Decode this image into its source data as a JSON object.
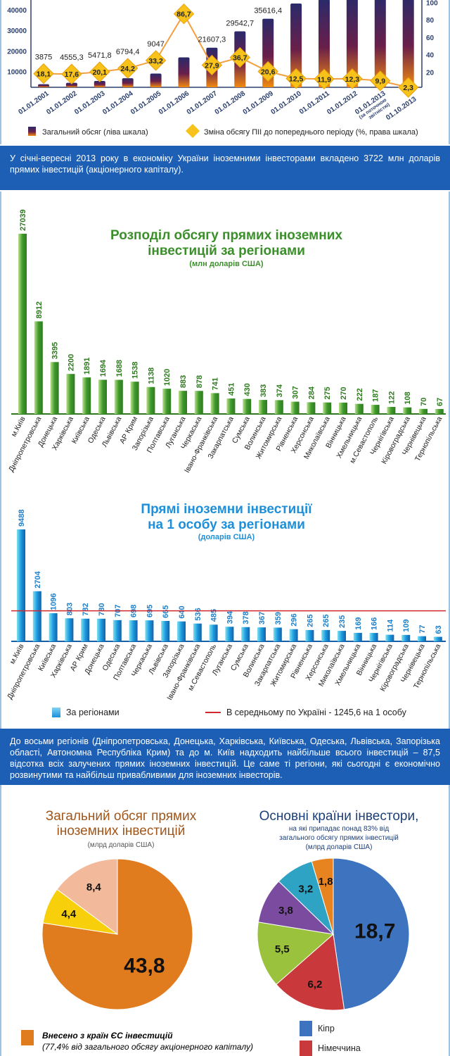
{
  "chart_data": [
    {
      "type": "bar",
      "name": "fdi-dynamics",
      "categories": [
        "01.01.2001",
        "01.01.2002",
        "01.01.2003",
        "01.01.2004",
        "01.01.2005",
        "01.01.2006",
        "01.01.2007",
        "01.01.2008",
        "01.01.2009",
        "01.01.2010",
        "01.01.2011",
        "01.01.2012",
        "01.01.2013 (за поточною звітністю)",
        "01.10.2013"
      ],
      "category_lines": [
        [
          "01.01.2001"
        ],
        [
          "01.01.2002"
        ],
        [
          "01.01.2003"
        ],
        [
          "01.01.2004"
        ],
        [
          "01.01.2005"
        ],
        [
          "01.01.2006"
        ],
        [
          "01.01.2007"
        ],
        [
          "01.01.2008"
        ],
        [
          "01.01.2009"
        ],
        [
          "01.01.2010"
        ],
        [
          "01.01.2011"
        ],
        [
          "01.01.2012"
        ],
        [
          "01.01.2013",
          "(за поточною",
          "звітністю)"
        ],
        [
          "01.10.2013"
        ]
      ],
      "series": [
        {
          "name": "Загальний обсяг (ліва шкала)",
          "type": "bar",
          "values": [
            3875,
            4555.3,
            5471.8,
            6794.4,
            9047,
            16890,
            21607.3,
            29542.7,
            35616.4,
            43000,
            45000,
            49500,
            54000,
            57000
          ],
          "labels": [
            "3875",
            "4555,3",
            "5471,8",
            "6794,4",
            "9047",
            "16890",
            "21607,3",
            "29542,7",
            "35616,4",
            "",
            "",
            "",
            "",
            ""
          ]
        },
        {
          "name": "Зміна обсягу ПІІ до попереднього періоду (%, права шкала)",
          "type": "line",
          "values": [
            18.1,
            17.6,
            20.1,
            24.2,
            33.2,
            86.7,
            27.9,
            36.7,
            20.6,
            12.5,
            11.9,
            12.3,
            9.9,
            2.3
          ],
          "labels": [
            "18,1",
            "17,6",
            "20,1",
            "24,2",
            "33,2",
            "86,7",
            "27,9",
            "36,7",
            "20,6",
            "12,5",
            "11,9",
            "12,3",
            "9,9",
            "2,3"
          ]
        }
      ],
      "left_ticks": [
        "10000",
        "20000",
        "30000",
        "40000"
      ],
      "right_ticks": [
        "20",
        "40",
        "60",
        "80",
        "100"
      ],
      "legend": [
        "Загальний обсяг (ліва шкала)",
        "Зміна обсягу ПІІ до попереднього періоду (%, права шкала)"
      ]
    },
    {
      "type": "bar",
      "name": "fdi-by-region",
      "title": "Розподіл обсягу прямих іноземних інвестицій за регіонами",
      "title_lines": [
        "Розподіл обсягу прямих іноземних",
        "інвестицій за регіонами"
      ],
      "subtitle": "(млн доларів США)",
      "categories": [
        "м.Київ",
        "Дніпропетровська",
        "Донецька",
        "Харківська",
        "Київська",
        "Одеська",
        "Львівська",
        "АР Крим",
        "Запорізька",
        "Полтавська",
        "Луганська",
        "Черкаська",
        "Івано-Франківська",
        "Закарпатська",
        "Сумська",
        "Волинська",
        "Житомирська",
        "Рівненська",
        "Херсонська",
        "Миколаївська",
        "Вінницька",
        "Хмельницька",
        "м.Севастополь",
        "Чернігівська",
        "Кіровоградська",
        "Чернівецька",
        "Тернопільська"
      ],
      "values": [
        27039,
        8912,
        3395,
        2200,
        1891,
        1694,
        1688,
        1538,
        1138,
        1020,
        883,
        878,
        741,
        451,
        430,
        383,
        374,
        307,
        284,
        275,
        270,
        222,
        187,
        122,
        108,
        70,
        67
      ]
    },
    {
      "type": "bar",
      "name": "fdi-per-capita",
      "title": "Прямі іноземни інвестиції на 1 особу за регіонами",
      "title_lines": [
        "Прямі іноземни інвестиції",
        "на 1 особу за регіонами"
      ],
      "subtitle": "(доларів США)",
      "categories": [
        "м.Київ",
        "Дніпропетровська",
        "Київська",
        "Харківська",
        "АР Крим",
        "Донецька",
        "Одеська",
        "Полтавська",
        "Черкаська",
        "Львівська",
        "Запорізька",
        "Івано-Франківська",
        "м.Севастополь",
        "Луганська",
        "Сумська",
        "Волинська",
        "Закарпатська",
        "Житомирська",
        "Рівненська",
        "Херсонська",
        "Миколаївська",
        "Хмельницька",
        "Вінницька",
        "Чернігівська",
        "Кіровоградська",
        "Чернівецька",
        "Тернопільська"
      ],
      "values": [
        9488,
        2704,
        1096,
        803,
        782,
        780,
        707,
        698,
        695,
        665,
        640,
        536,
        485,
        394,
        378,
        367,
        359,
        296,
        265,
        265,
        235,
        169,
        166,
        114,
        109,
        77,
        63
      ],
      "average": 1245.6,
      "legend": [
        "За регіонами",
        "В середньому по Україні - 1245,6 на 1 особу"
      ]
    },
    {
      "type": "pie",
      "name": "total-fdi-pie",
      "title_lines": [
        "Загальний обсяг прямих",
        "іноземних інвестицій"
      ],
      "subtitle": "(млрд доларів США)",
      "values": [
        43.8,
        4.4,
        8.4
      ],
      "labels": [
        "43,8",
        "4,4",
        "8,4"
      ],
      "colors": [
        "#e07b1e",
        "#f7cf0a",
        "#f2b99a"
      ],
      "legend": {
        "label": "Внесено з країн ЄС інвестицій",
        "note": "(77,4% від загального обсягу акціонерного капіталу)"
      }
    },
    {
      "type": "pie",
      "name": "investor-countries-pie",
      "title": "Основні країни інвестори,",
      "subtitle_lines": [
        "на які припадає понад 83% від",
        "загального обсягу прямих інвестицій",
        "(млрд доларів США)"
      ],
      "values": [
        18.7,
        6.2,
        5.5,
        3.8,
        3.2,
        1.8
      ],
      "labels": [
        "18,7",
        "6,2",
        "5,5",
        "3,8",
        "3,2",
        "1,8"
      ],
      "colors": [
        "#3d73bf",
        "#c9383a",
        "#9ac23c",
        "#7a4b9f",
        "#2ea3c4",
        "#e8841f"
      ],
      "legend": [
        {
          "label": "Кіпр",
          "color": "#3d73bf"
        },
        {
          "label": "Німеччина",
          "color": "#c9383a"
        }
      ]
    }
  ],
  "banner1": "У січні-вересні 2013 року в економіку України іноземними інвесторами вкладено 3722 млн доларів прямих інвестицій (акціонерного капіталу).",
  "banner2": "До восьми регіонів (Дніпропетровська, Донецька, Харківська, Київська, Одеська, Львівська, Запорізька області, Автономна Республіка Крим) та до м. Київ надходить найбільше всього інвестицій – 87,5 відсотка всіх залучених прямих іноземних інвестицій. Це саме ті регіони, які сьогодні є економічно розвинутими та найбільш привабливими для іноземних інвесторів."
}
